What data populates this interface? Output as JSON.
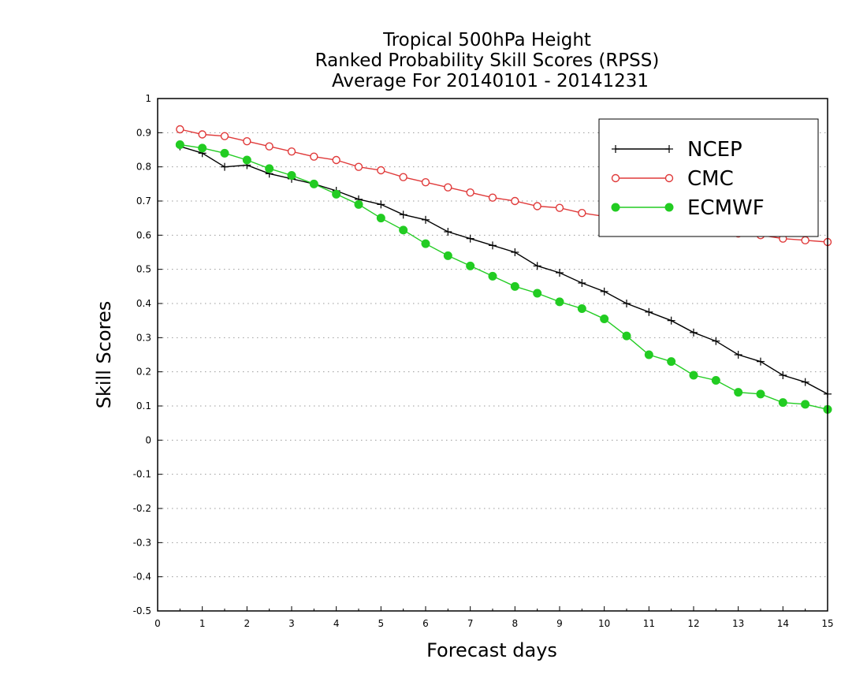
{
  "chart_data": {
    "type": "line",
    "title_lines": [
      "Tropical 500hPa Height",
      "Ranked Probability Skill Scores (RPSS)",
      "Average For 20140101 - 20141231"
    ],
    "xlabel": "Forecast days",
    "ylabel": "Skill Scores",
    "xlim": [
      0,
      15
    ],
    "ylim": [
      -0.5,
      1
    ],
    "x_ticks": [
      0,
      1,
      2,
      3,
      4,
      5,
      6,
      7,
      8,
      9,
      10,
      11,
      12,
      13,
      14,
      15
    ],
    "x_tick_labels": [
      "0",
      "1",
      "2",
      "3",
      "4",
      "5",
      "6",
      "7",
      "8",
      "9",
      "10",
      "11",
      "12",
      "13",
      "14",
      "15"
    ],
    "y_ticks": [
      -0.5,
      -0.4,
      -0.3,
      -0.2,
      -0.1,
      0,
      0.1,
      0.2,
      0.3,
      0.4,
      0.5,
      0.6,
      0.7,
      0.8,
      0.9,
      1
    ],
    "y_tick_labels": [
      "-0.5",
      "-0.4",
      "-0.3",
      "-0.2",
      "-0.1",
      "0",
      "0.1",
      "0.2",
      "0.3",
      "0.4",
      "0.5",
      "0.6",
      "0.7",
      "0.8",
      "0.9",
      "1"
    ],
    "grid": "horizontal dotted",
    "legend_position": "top-right",
    "x": [
      0.5,
      1,
      1.5,
      2,
      2.5,
      3,
      3.5,
      4,
      4.5,
      5,
      5.5,
      6,
      6.5,
      7,
      7.5,
      8,
      8.5,
      9,
      9.5,
      10,
      10.5,
      11,
      11.5,
      12,
      12.5,
      13,
      13.5,
      14,
      14.5,
      15
    ],
    "series": [
      {
        "name": "NCEP",
        "color": "#000000",
        "marker": "plus",
        "values": [
          0.86,
          0.84,
          0.8,
          0.805,
          0.78,
          0.765,
          0.75,
          0.73,
          0.705,
          0.69,
          0.66,
          0.645,
          0.61,
          0.59,
          0.57,
          0.55,
          0.51,
          0.49,
          0.46,
          0.435,
          0.4,
          0.375,
          0.35,
          0.315,
          0.29,
          0.25,
          0.23,
          0.19,
          0.17,
          0.135
        ]
      },
      {
        "name": "CMC",
        "color": "#e03a3a",
        "marker": "open-circle",
        "values": [
          0.91,
          0.895,
          0.89,
          0.875,
          0.86,
          0.845,
          0.83,
          0.82,
          0.8,
          0.79,
          0.77,
          0.755,
          0.74,
          0.725,
          0.71,
          0.7,
          0.685,
          0.68,
          0.665,
          0.655,
          0.645,
          0.635,
          0.625,
          0.62,
          0.61,
          0.605,
          0.6,
          0.59,
          0.585,
          0.58
        ]
      },
      {
        "name": "ECMWF",
        "color": "#22cc22",
        "marker": "filled-circle",
        "values": [
          0.865,
          0.855,
          0.84,
          0.82,
          0.795,
          0.775,
          0.75,
          0.72,
          0.69,
          0.65,
          0.615,
          0.575,
          0.54,
          0.51,
          0.48,
          0.45,
          0.43,
          0.405,
          0.385,
          0.355,
          0.305,
          0.25,
          0.23,
          0.19,
          0.175,
          0.14,
          0.135,
          0.11,
          0.105,
          0.09
        ]
      }
    ]
  }
}
